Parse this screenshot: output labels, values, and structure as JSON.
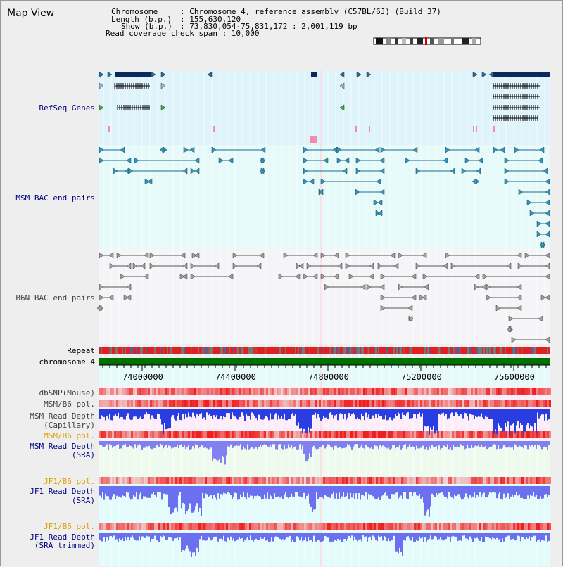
{
  "title": "Map View",
  "header": {
    "chromosome_key": "Chromosome",
    "chromosome_val": ": Chromosome 4, reference assembly (C57BL/6J) (Build 37)",
    "length_key": "Length (b.p.)",
    "length_val": ": 155,630,120",
    "show_key": "Show (b.p.)",
    "show_val": ": 73,830,054-75,831,172 : 2,001,119 bp",
    "coverage": "Read coverage check span : 10,000"
  },
  "tracks": {
    "refseq": "RefSeq Genes",
    "msm_bac": "MSM BAC end pairs",
    "b6n_bac": "B6N BAC end pairs",
    "repeat": "Repeat",
    "chromosome": "chromosome 4",
    "dbsnp": "dbSNP(Mouse)",
    "msm_b6_pol_1": "MSM/B6 pol.",
    "msm_read_depth_cap_1": "MSM Read Depth",
    "msm_read_depth_cap_2": "(Capillary)",
    "msm_b6_pol_2": "MSM/B6 pol.",
    "msm_read_depth_sra_1": "MSM Read Depth",
    "msm_read_depth_sra_2": "(SRA)",
    "jf1_b6_pol_1": "JF1/B6 pol.",
    "jf1_read_depth_sra_1": "JF1 Read Depth",
    "jf1_read_depth_sra_2": "(SRA)",
    "jf1_b6_pol_2": "JF1/B6 pol.",
    "jf1_read_depth_trim_1": "JF1 Read Depth",
    "jf1_read_depth_trim_2": "(SRA trimmed)"
  },
  "axis": {
    "ticks": [
      "74000000",
      "74400000",
      "74800000",
      "75200000",
      "75600000"
    ]
  },
  "colors": {
    "refseq_bg": "#dff3fb",
    "msm_bg": "#e6fafa",
    "b6n_bg": "#f5f5f7",
    "depth_cap": "#2a3de0",
    "depth_sra": "#8080f0",
    "chrom_green": "#007000"
  }
}
